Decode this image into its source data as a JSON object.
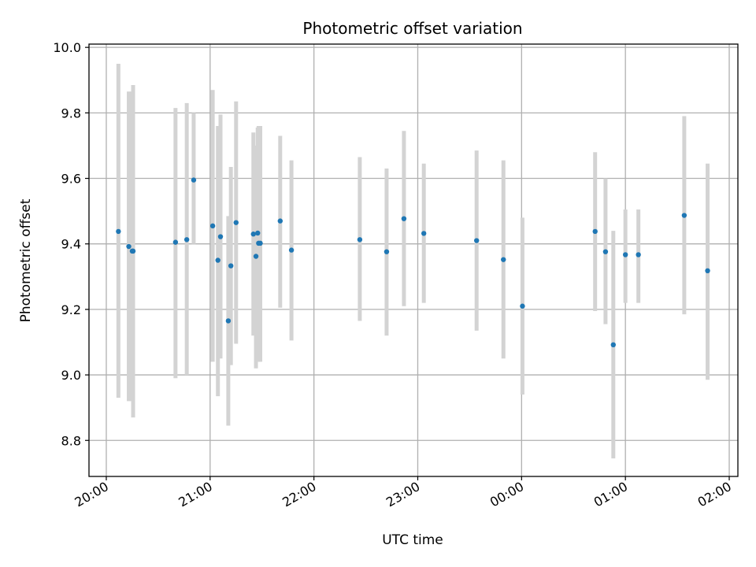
{
  "chart_data": {
    "type": "scatter",
    "title": "Photometric offset variation",
    "xlabel": "UTC time",
    "ylabel": "Photometric offset",
    "x_tick_labels": [
      "20:00",
      "21:00",
      "22:00",
      "23:00",
      "00:00",
      "01:00",
      "02:00"
    ],
    "x_tick_values": [
      0,
      60,
      120,
      180,
      240,
      300,
      360
    ],
    "xlim": [
      -10,
      365
    ],
    "y_tick_labels": [
      "8.8",
      "9.0",
      "9.2",
      "9.4",
      "9.6",
      "9.8",
      "10.0"
    ],
    "y_tick_values": [
      8.8,
      9.0,
      9.2,
      9.4,
      9.6,
      9.8,
      10.0
    ],
    "ylim": [
      8.69,
      10.01
    ],
    "grid": true,
    "colors": {
      "marker": "#1f77b4",
      "errorbar": "#d3d3d3",
      "grid": "#b0b0b0"
    },
    "series": [
      {
        "x": [
          7,
          13,
          15,
          15.5,
          40,
          46.5,
          50.5,
          61.5,
          64.5,
          66,
          70.5,
          72,
          75,
          85,
          86.5,
          87.5,
          88,
          89,
          100.5,
          107,
          146.5,
          162,
          172,
          183.5,
          214,
          229.5,
          240.5,
          282.5,
          288.5,
          293,
          300,
          307.5,
          334,
          347.5
        ],
        "y": [
          9.438,
          9.392,
          9.378,
          9.378,
          9.405,
          9.413,
          9.595,
          9.455,
          9.35,
          9.422,
          9.165,
          9.333,
          9.465,
          9.43,
          9.362,
          9.433,
          9.402,
          9.402,
          9.47,
          9.381,
          9.413,
          9.376,
          9.477,
          9.432,
          9.41,
          9.352,
          9.21,
          9.438,
          9.376,
          9.092,
          9.367,
          9.367,
          9.487,
          9.318
        ],
        "yerr_low": [
          8.93,
          8.92,
          8.92,
          8.87,
          8.99,
          9.0,
          9.4,
          9.04,
          8.935,
          9.05,
          8.845,
          9.03,
          9.095,
          9.12,
          9.02,
          9.045,
          9.04,
          9.04,
          9.205,
          9.105,
          9.165,
          9.12,
          9.21,
          9.22,
          9.135,
          9.05,
          8.94,
          9.195,
          9.155,
          8.745,
          9.22,
          9.22,
          9.185,
          8.985
        ],
        "yerr_high": [
          9.95,
          9.865,
          9.865,
          9.885,
          9.815,
          9.83,
          9.8,
          9.87,
          9.76,
          9.795,
          9.485,
          9.635,
          9.835,
          9.74,
          9.7,
          9.755,
          9.76,
          9.76,
          9.73,
          9.655,
          9.665,
          9.63,
          9.745,
          9.645,
          9.685,
          9.655,
          9.48,
          9.68,
          9.6,
          9.44,
          9.505,
          9.505,
          9.79,
          9.645
        ]
      }
    ]
  }
}
